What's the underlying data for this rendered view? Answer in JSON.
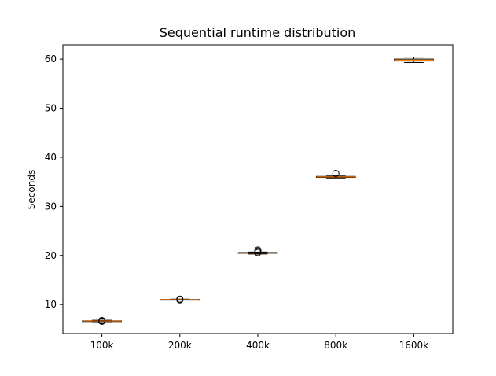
{
  "chart_data": {
    "type": "box",
    "title": "Sequential runtime distribution",
    "xlabel": "",
    "ylabel": "Seconds",
    "ylim": [
      4.1,
      62.9
    ],
    "yticks": [
      10,
      20,
      30,
      40,
      50,
      60
    ],
    "categories": [
      "100k",
      "200k",
      "400k",
      "800k",
      "1600k"
    ],
    "boxes": [
      {
        "category": "100k",
        "whisker_low": 6.5,
        "q1": 6.6,
        "median": 6.65,
        "q3": 6.7,
        "whisker_high": 6.8,
        "outliers": [
          6.6,
          6.75
        ]
      },
      {
        "category": "200k",
        "whisker_low": 10.9,
        "q1": 10.95,
        "median": 11.0,
        "q3": 11.05,
        "whisker_high": 11.1,
        "outliers": [
          10.95,
          11.1
        ]
      },
      {
        "category": "400k",
        "whisker_low": 20.3,
        "q1": 20.45,
        "median": 20.5,
        "q3": 20.6,
        "whisker_high": 20.7,
        "outliers": [
          20.6,
          20.9,
          21.1
        ]
      },
      {
        "category": "800k",
        "whisker_low": 35.7,
        "q1": 35.9,
        "median": 36.0,
        "q3": 36.1,
        "whisker_high": 36.3,
        "outliers": [
          36.7
        ]
      },
      {
        "category": "1600k",
        "whisker_low": 59.3,
        "q1": 59.6,
        "median": 59.8,
        "q3": 60.0,
        "whisker_high": 60.4,
        "outliers": []
      }
    ],
    "colors": {
      "box": "#000000",
      "median": "#ff7f0e",
      "outlier": "#000000",
      "frame": "#000000"
    },
    "grid": false,
    "legend": "none"
  }
}
